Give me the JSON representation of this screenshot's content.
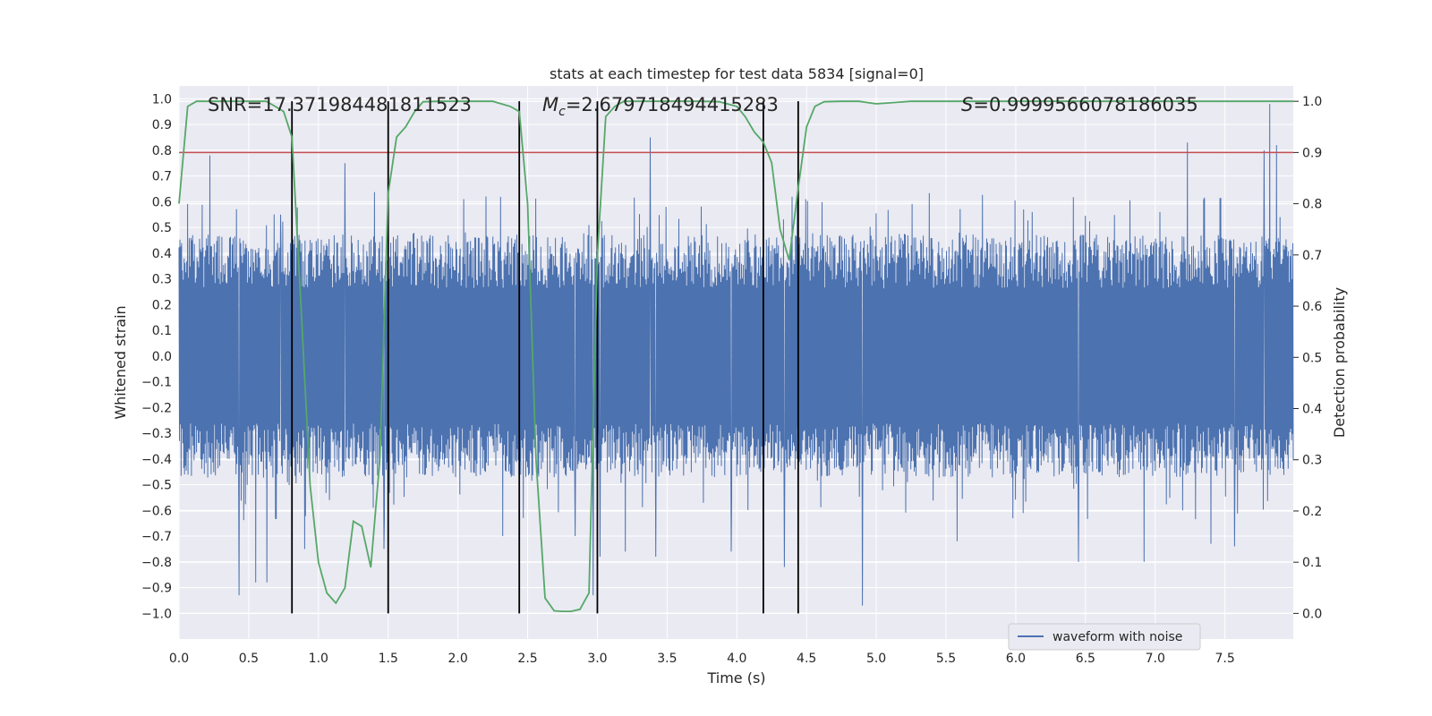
{
  "chart_data": {
    "type": "line",
    "title": "stats at each timestep for test data 5834 [signal=0]",
    "xlabel": "Time (s)",
    "ylabel": "Whitened strain",
    "y2label": "Detection probability",
    "xlim": [
      0.0,
      7.99
    ],
    "ylim": [
      -1.1,
      1.05
    ],
    "y2lim": [
      -0.05,
      1.03
    ],
    "xticks": [
      "0.0",
      "0.5",
      "1.0",
      "1.5",
      "2.0",
      "2.5",
      "3.0",
      "3.5",
      "4.0",
      "4.5",
      "5.0",
      "5.5",
      "6.0",
      "6.5",
      "7.0",
      "7.5"
    ],
    "yticks": [
      "1.0",
      "0.9",
      "0.8",
      "0.7",
      "0.6",
      "0.5",
      "0.4",
      "0.3",
      "0.2",
      "0.1",
      "0.0",
      "-0.1",
      "-0.2",
      "-0.3",
      "-0.4",
      "-0.5",
      "-0.6",
      "-0.7",
      "-0.8",
      "-0.9",
      "-1.0"
    ],
    "y2ticks": [
      "1.0",
      "0.9",
      "0.8",
      "0.7",
      "0.6",
      "0.5",
      "0.4",
      "0.3",
      "0.2",
      "0.1",
      "0.0"
    ],
    "annotations": {
      "snr": "SNR=17.371984481811523",
      "mc_symbol": "M",
      "mc_sub": "c",
      "mc_value": "=2.679718494415283",
      "s_symbol": "S",
      "s_value": "=0.9999566078186035"
    },
    "legend": {
      "label": "waveform with noise",
      "position": "lower-right"
    },
    "colors": {
      "strain": "#4c72b0",
      "probability": "#55a868",
      "threshold": "#c44e52",
      "boundary": "#000000",
      "background": "#eaeaf2",
      "grid": "#ffffff"
    },
    "threshold_probability": 0.9,
    "segment_boundaries_s": [
      0.81,
      1.5,
      2.44,
      3.0,
      4.19,
      4.44
    ],
    "series": [
      {
        "name": "waveform with noise",
        "kind": "strain",
        "sample_rate_hz": 2048,
        "typical_amplitude": 0.35,
        "peaks": [
          {
            "t": 0.22,
            "v": 0.78
          },
          {
            "t": 0.43,
            "v": -0.93
          },
          {
            "t": 0.55,
            "v": -0.88
          },
          {
            "t": 0.63,
            "v": -0.88
          },
          {
            "t": 0.73,
            "v": 0.55
          },
          {
            "t": 0.9,
            "v": -0.75
          },
          {
            "t": 1.19,
            "v": 0.75
          },
          {
            "t": 1.47,
            "v": -0.75
          },
          {
            "t": 2.32,
            "v": -0.7
          },
          {
            "t": 2.84,
            "v": -0.7
          },
          {
            "t": 2.97,
            "v": -0.93
          },
          {
            "t": 3.02,
            "v": -0.78
          },
          {
            "t": 3.2,
            "v": -0.76
          },
          {
            "t": 3.38,
            "v": 0.85
          },
          {
            "t": 3.42,
            "v": -0.78
          },
          {
            "t": 3.96,
            "v": -0.76
          },
          {
            "t": 4.19,
            "v": -0.8
          },
          {
            "t": 4.34,
            "v": -0.82
          },
          {
            "t": 4.9,
            "v": -0.97
          },
          {
            "t": 5.58,
            "v": -0.72
          },
          {
            "t": 6.45,
            "v": -0.8
          },
          {
            "t": 6.92,
            "v": -0.8
          },
          {
            "t": 7.23,
            "v": 0.83
          },
          {
            "t": 7.4,
            "v": -0.73
          },
          {
            "t": 7.57,
            "v": -0.74
          },
          {
            "t": 7.78,
            "v": 0.8
          },
          {
            "t": 7.82,
            "v": 0.98
          },
          {
            "t": 7.87,
            "v": 0.82
          }
        ]
      },
      {
        "name": "detection probability",
        "kind": "probability",
        "x": [
          0.0,
          0.062,
          0.125,
          0.25,
          0.375,
          0.5,
          0.625,
          0.69,
          0.75,
          0.81,
          0.875,
          0.94,
          1.0,
          1.06,
          1.125,
          1.19,
          1.25,
          1.31,
          1.375,
          1.44,
          1.5,
          1.56,
          1.625,
          1.69,
          1.75,
          1.875,
          2.0,
          2.125,
          2.25,
          2.375,
          2.44,
          2.5,
          2.56,
          2.625,
          2.69,
          2.75,
          2.81,
          2.875,
          2.94,
          3.0,
          3.06,
          3.125,
          3.19,
          3.25,
          3.375,
          3.5,
          3.625,
          3.75,
          3.875,
          4.0,
          4.06,
          4.125,
          4.19,
          4.25,
          4.31,
          4.375,
          4.44,
          4.5,
          4.56,
          4.625,
          4.75,
          4.875,
          5.0,
          5.25,
          5.5,
          5.75,
          6.0,
          6.5,
          7.0,
          7.5,
          7.99
        ],
        "y": [
          0.8,
          0.99,
          1.0,
          1.0,
          1.0,
          1.0,
          1.0,
          0.99,
          0.98,
          0.93,
          0.6,
          0.25,
          0.1,
          0.04,
          0.02,
          0.05,
          0.18,
          0.17,
          0.09,
          0.3,
          0.82,
          0.93,
          0.95,
          0.98,
          0.999,
          1.0,
          1.0,
          1.0,
          1.0,
          0.99,
          0.98,
          0.8,
          0.3,
          0.03,
          0.005,
          0.004,
          0.004,
          0.008,
          0.04,
          0.7,
          0.97,
          0.99,
          1.0,
          1.0,
          1.0,
          1.0,
          1.0,
          1.0,
          0.999,
          0.99,
          0.97,
          0.94,
          0.92,
          0.88,
          0.75,
          0.69,
          0.83,
          0.95,
          0.99,
          0.999,
          1.0,
          1.0,
          0.995,
          1.0,
          1.0,
          1.0,
          1.0,
          1.0,
          1.0,
          1.0,
          1.0
        ]
      }
    ]
  }
}
